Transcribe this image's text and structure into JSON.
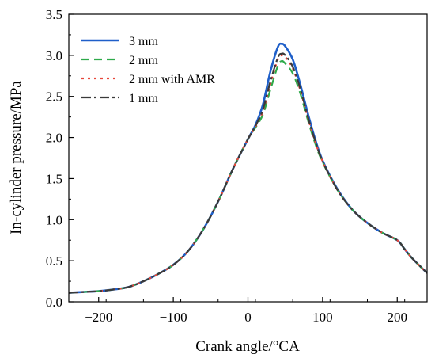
{
  "chart_data": {
    "type": "line",
    "title": "",
    "xlabel": "Crank angle/°CA",
    "ylabel": "In-cylinder pressure/MPa",
    "xlim": [
      -240,
      240
    ],
    "ylim": [
      0.0,
      3.5
    ],
    "xticks": [
      -200,
      -100,
      0,
      100,
      200
    ],
    "xtick_labels": [
      "−200",
      "−100",
      "0",
      "100",
      "200"
    ],
    "yticks": [
      0.0,
      0.5,
      1.0,
      1.5,
      2.0,
      2.5,
      3.0,
      3.5
    ],
    "ytick_labels": [
      "0.0",
      "0.5",
      "1.0",
      "1.5",
      "2.0",
      "2.5",
      "3.0",
      "3.5"
    ],
    "grid": false,
    "legend_position": "top-left",
    "x": [
      -240,
      -220,
      -200,
      -180,
      -160,
      -140,
      -120,
      -100,
      -80,
      -60,
      -40,
      -20,
      0,
      10,
      20,
      30,
      40,
      45,
      50,
      60,
      70,
      80,
      90,
      100,
      120,
      140,
      160,
      180,
      200,
      210,
      220,
      240
    ],
    "series": [
      {
        "name": "3 mm",
        "color": "#1f5fc9",
        "dash": "solid",
        "values": [
          0.11,
          0.12,
          0.13,
          0.15,
          0.18,
          0.25,
          0.34,
          0.45,
          0.62,
          0.88,
          1.22,
          1.62,
          1.98,
          2.15,
          2.4,
          2.8,
          3.1,
          3.14,
          3.11,
          2.95,
          2.65,
          2.3,
          1.98,
          1.72,
          1.37,
          1.12,
          0.96,
          0.84,
          0.75,
          0.64,
          0.53,
          0.35
        ]
      },
      {
        "name": "2 mm",
        "color": "#2eaa4a",
        "dash": "10,6",
        "values": [
          0.11,
          0.12,
          0.13,
          0.15,
          0.18,
          0.25,
          0.34,
          0.45,
          0.62,
          0.88,
          1.22,
          1.62,
          1.98,
          2.12,
          2.28,
          2.58,
          2.87,
          2.93,
          2.9,
          2.78,
          2.54,
          2.22,
          1.93,
          1.7,
          1.36,
          1.12,
          0.96,
          0.84,
          0.75,
          0.64,
          0.53,
          0.35
        ]
      },
      {
        "name": "2 mm with AMR",
        "color": "#e8463a",
        "dash": "3,5",
        "values": [
          0.11,
          0.12,
          0.13,
          0.15,
          0.18,
          0.25,
          0.34,
          0.45,
          0.62,
          0.88,
          1.22,
          1.62,
          1.98,
          2.13,
          2.32,
          2.65,
          2.95,
          3.0,
          2.98,
          2.84,
          2.58,
          2.25,
          1.95,
          1.71,
          1.36,
          1.12,
          0.96,
          0.84,
          0.75,
          0.64,
          0.53,
          0.35
        ]
      },
      {
        "name": "1 mm",
        "color": "#3a3a3a",
        "dash": "12,4,3,4",
        "values": [
          0.11,
          0.12,
          0.13,
          0.15,
          0.18,
          0.25,
          0.34,
          0.45,
          0.62,
          0.88,
          1.22,
          1.62,
          1.98,
          2.14,
          2.34,
          2.68,
          2.97,
          3.02,
          3.0,
          2.86,
          2.6,
          2.26,
          1.96,
          1.71,
          1.36,
          1.12,
          0.96,
          0.84,
          0.75,
          0.64,
          0.53,
          0.35
        ]
      }
    ]
  }
}
